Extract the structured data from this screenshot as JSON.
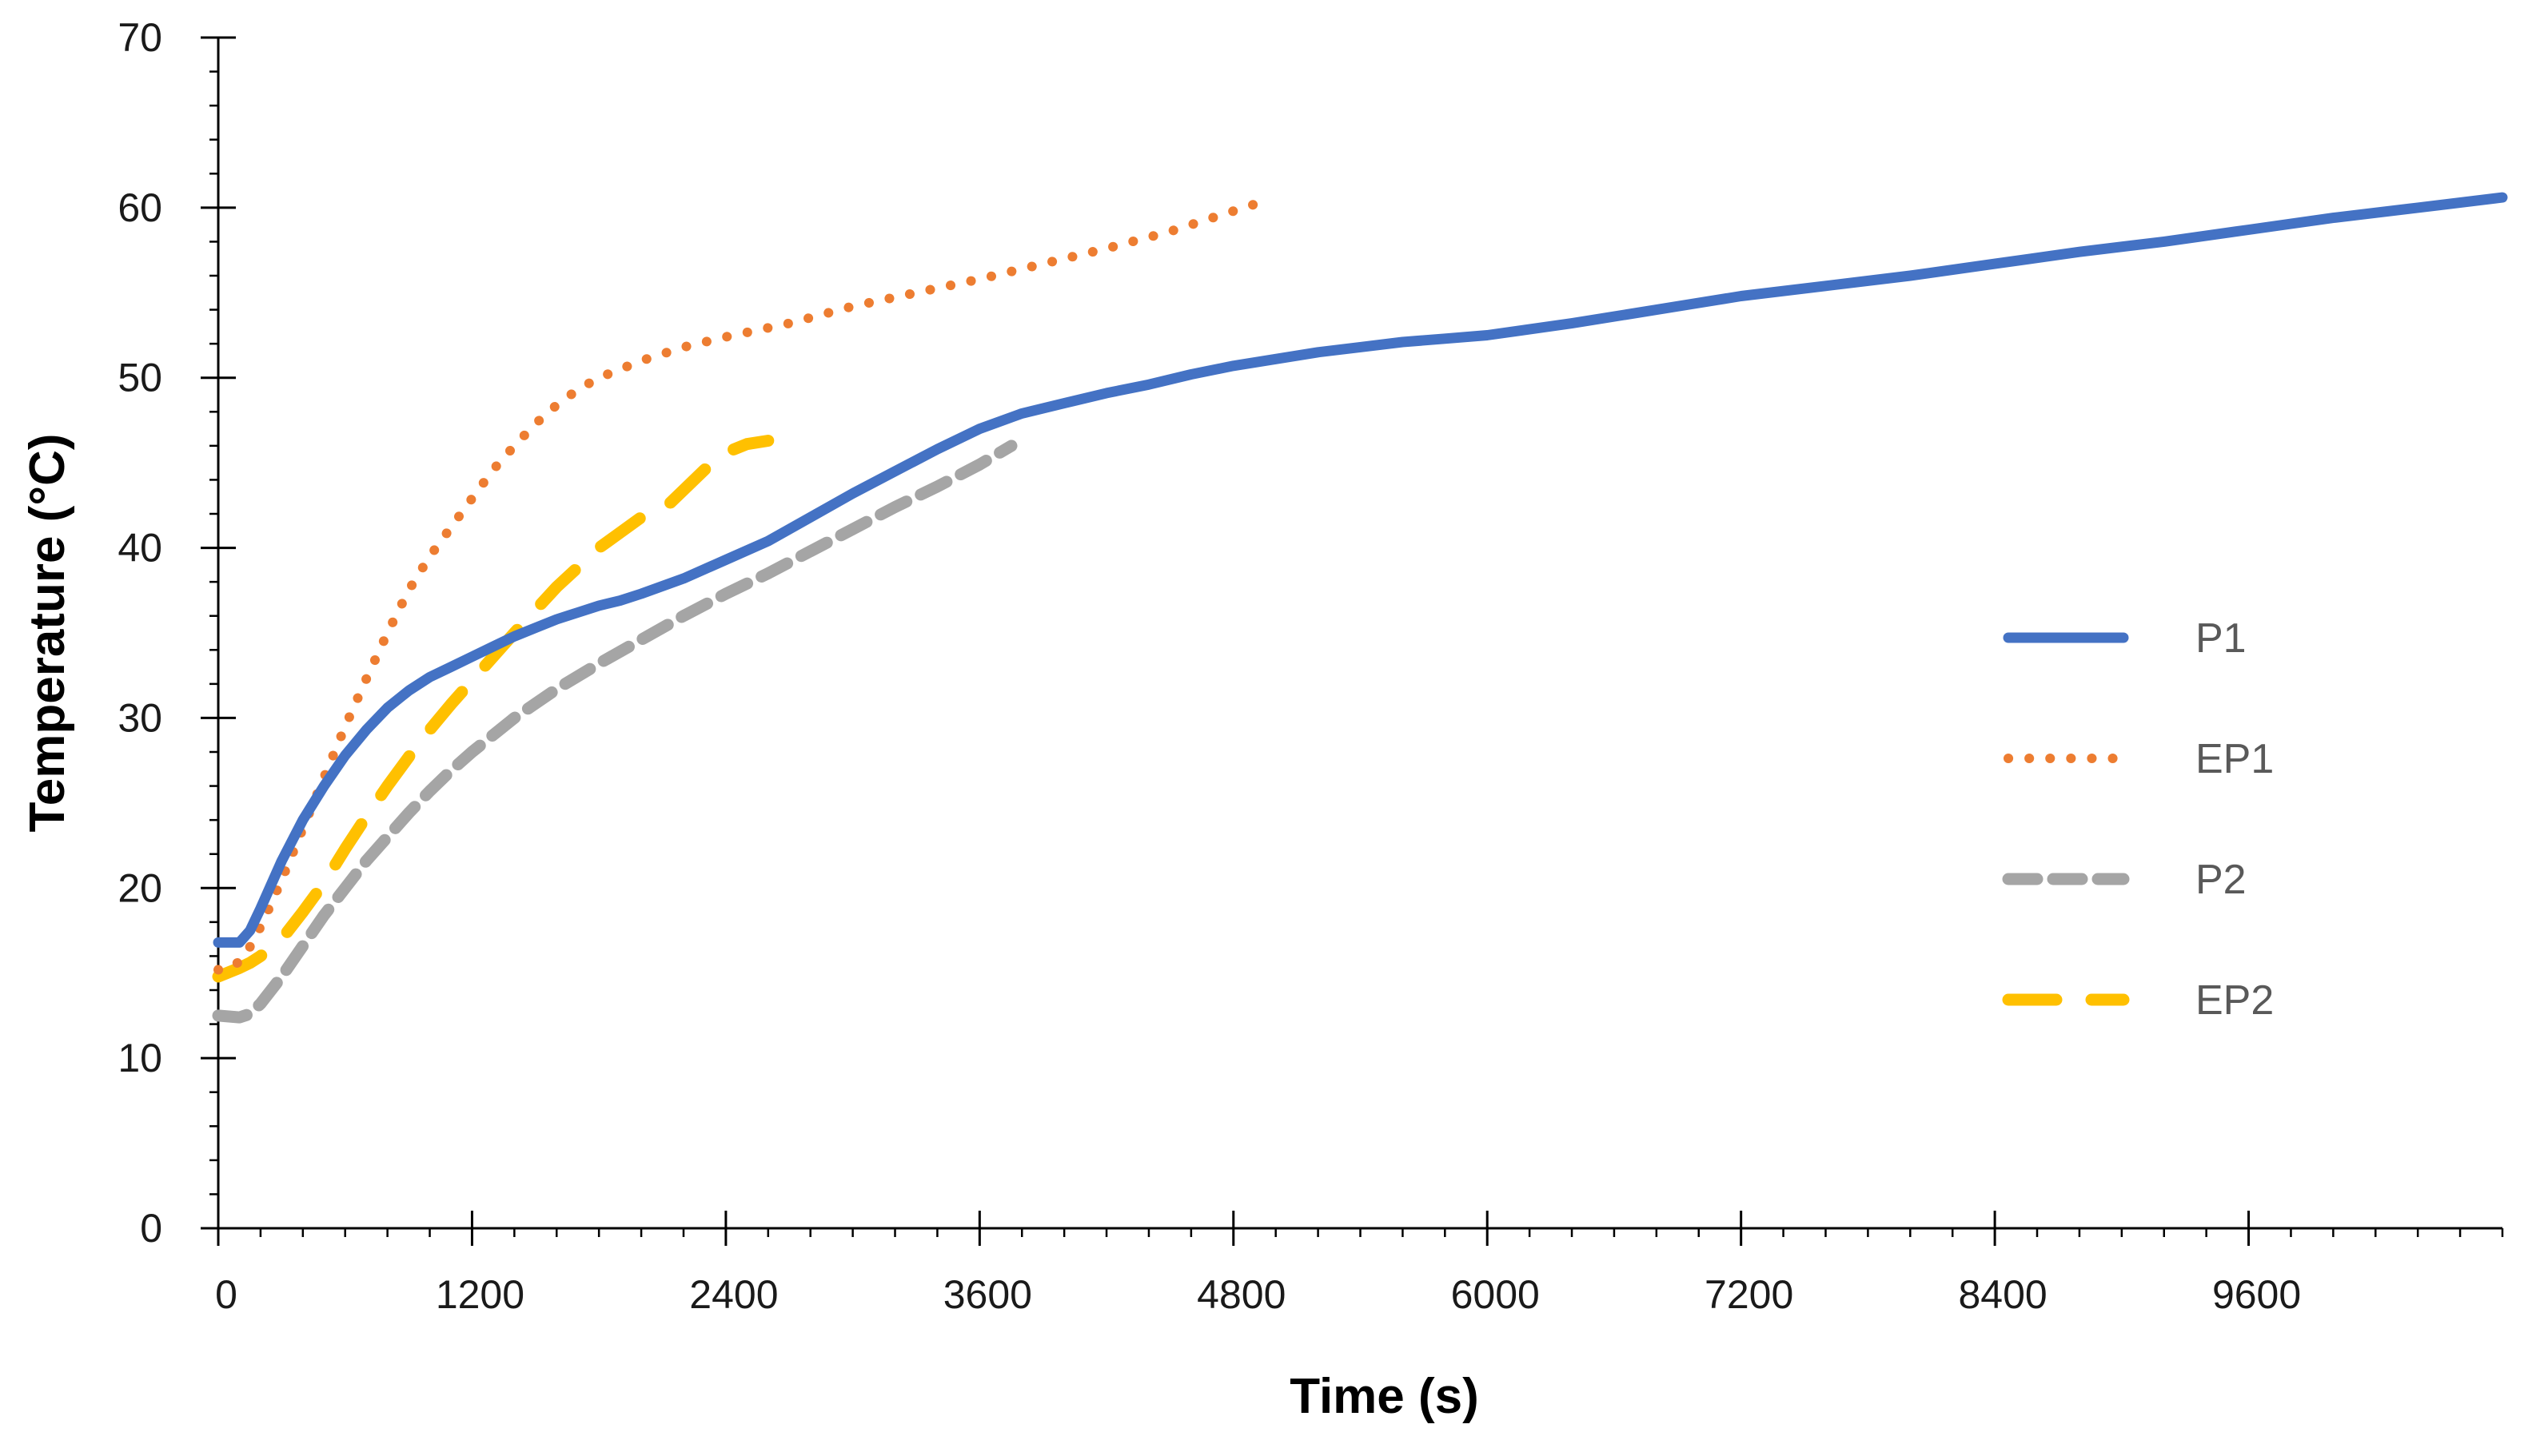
{
  "chart_data": {
    "type": "line",
    "title": "",
    "xlabel": "Time (s)",
    "ylabel": "Temperature (°C)",
    "xlim": [
      0,
      10800
    ],
    "ylim": [
      0,
      70
    ],
    "x_ticks": [
      0,
      1200,
      2400,
      3600,
      4800,
      6000,
      7200,
      8400,
      9600
    ],
    "y_ticks": [
      0,
      10,
      20,
      30,
      40,
      50,
      60,
      70
    ],
    "grid": false,
    "legend_position": "right",
    "series": [
      {
        "name": "P1",
        "style": "solid",
        "color": "#4472C4",
        "x": [
          0,
          100,
          150,
          200,
          300,
          400,
          500,
          600,
          700,
          800,
          900,
          1000,
          1100,
          1200,
          1300,
          1400,
          1500,
          1600,
          1700,
          1800,
          1900,
          2000,
          2200,
          2400,
          2600,
          2800,
          3000,
          3200,
          3400,
          3600,
          3800,
          4000,
          4200,
          4400,
          4600,
          4800,
          5000,
          5200,
          5400,
          5600,
          5800,
          6000,
          6400,
          6800,
          7200,
          7600,
          8000,
          8400,
          8800,
          9200,
          9600,
          10000,
          10400,
          10800
        ],
        "y": [
          16.8,
          16.8,
          17.5,
          18.8,
          21.6,
          24.0,
          26.0,
          27.8,
          29.3,
          30.6,
          31.6,
          32.4,
          33.0,
          33.6,
          34.2,
          34.8,
          35.3,
          35.8,
          36.2,
          36.6,
          36.9,
          37.3,
          38.2,
          39.3,
          40.4,
          41.8,
          43.2,
          44.5,
          45.8,
          47.0,
          47.9,
          48.5,
          49.1,
          49.6,
          50.2,
          50.7,
          51.1,
          51.5,
          51.8,
          52.1,
          52.3,
          52.5,
          53.2,
          54.0,
          54.8,
          55.4,
          56.0,
          56.7,
          57.4,
          58.0,
          58.7,
          59.4,
          60.0,
          60.6
        ]
      },
      {
        "name": "EP1",
        "style": "dotted",
        "color": "#ED7D31",
        "x": [
          0,
          60,
          120,
          180,
          240,
          300,
          400,
          500,
          600,
          700,
          800,
          900,
          1000,
          1100,
          1200,
          1300,
          1400,
          1500,
          1600,
          1700,
          1800,
          1900,
          2000,
          2200,
          2400,
          2700,
          3000,
          3300,
          3600,
          3900,
          4200,
          4500,
          4700,
          4900
        ],
        "y": [
          15.2,
          15.3,
          15.9,
          17.2,
          18.8,
          20.5,
          23.5,
          26.5,
          29.5,
          32.3,
          35.0,
          37.5,
          39.5,
          41.2,
          42.9,
          44.6,
          46.0,
          47.3,
          48.4,
          49.3,
          50.0,
          50.5,
          51.0,
          51.8,
          52.4,
          53.2,
          54.2,
          55.0,
          55.8,
          56.7,
          57.6,
          58.6,
          59.4,
          60.2
        ]
      },
      {
        "name": "P2",
        "style": "dashed",
        "color": "#A5A5A5",
        "x": [
          0,
          100,
          150,
          200,
          300,
          400,
          500,
          600,
          700,
          800,
          900,
          1000,
          1100,
          1200,
          1400,
          1600,
          1800,
          2000,
          2200,
          2400,
          2600,
          2800,
          3000,
          3200,
          3400,
          3600,
          3750
        ],
        "y": [
          12.5,
          12.4,
          12.6,
          13.2,
          14.8,
          16.6,
          18.4,
          20.0,
          21.6,
          23.0,
          24.4,
          25.7,
          26.9,
          28.0,
          30.0,
          31.7,
          33.2,
          34.6,
          36.0,
          37.3,
          38.5,
          39.8,
          41.1,
          42.4,
          43.6,
          44.9,
          46.0
        ]
      },
      {
        "name": "EP2",
        "style": "long-dash",
        "color": "#FFC000",
        "x": [
          0,
          100,
          150,
          200,
          300,
          400,
          500,
          600,
          700,
          800,
          900,
          1000,
          1100,
          1200,
          1400,
          1600,
          1800,
          2000,
          2100,
          2200,
          2300,
          2400,
          2500,
          2600
        ],
        "y": [
          14.8,
          15.3,
          15.6,
          16.0,
          17.0,
          18.6,
          20.3,
          22.3,
          24.2,
          26.0,
          27.7,
          29.3,
          30.8,
          32.2,
          35.0,
          37.7,
          40.0,
          41.8,
          42.2,
          43.4,
          44.6,
          45.6,
          46.1,
          46.3
        ]
      }
    ]
  }
}
